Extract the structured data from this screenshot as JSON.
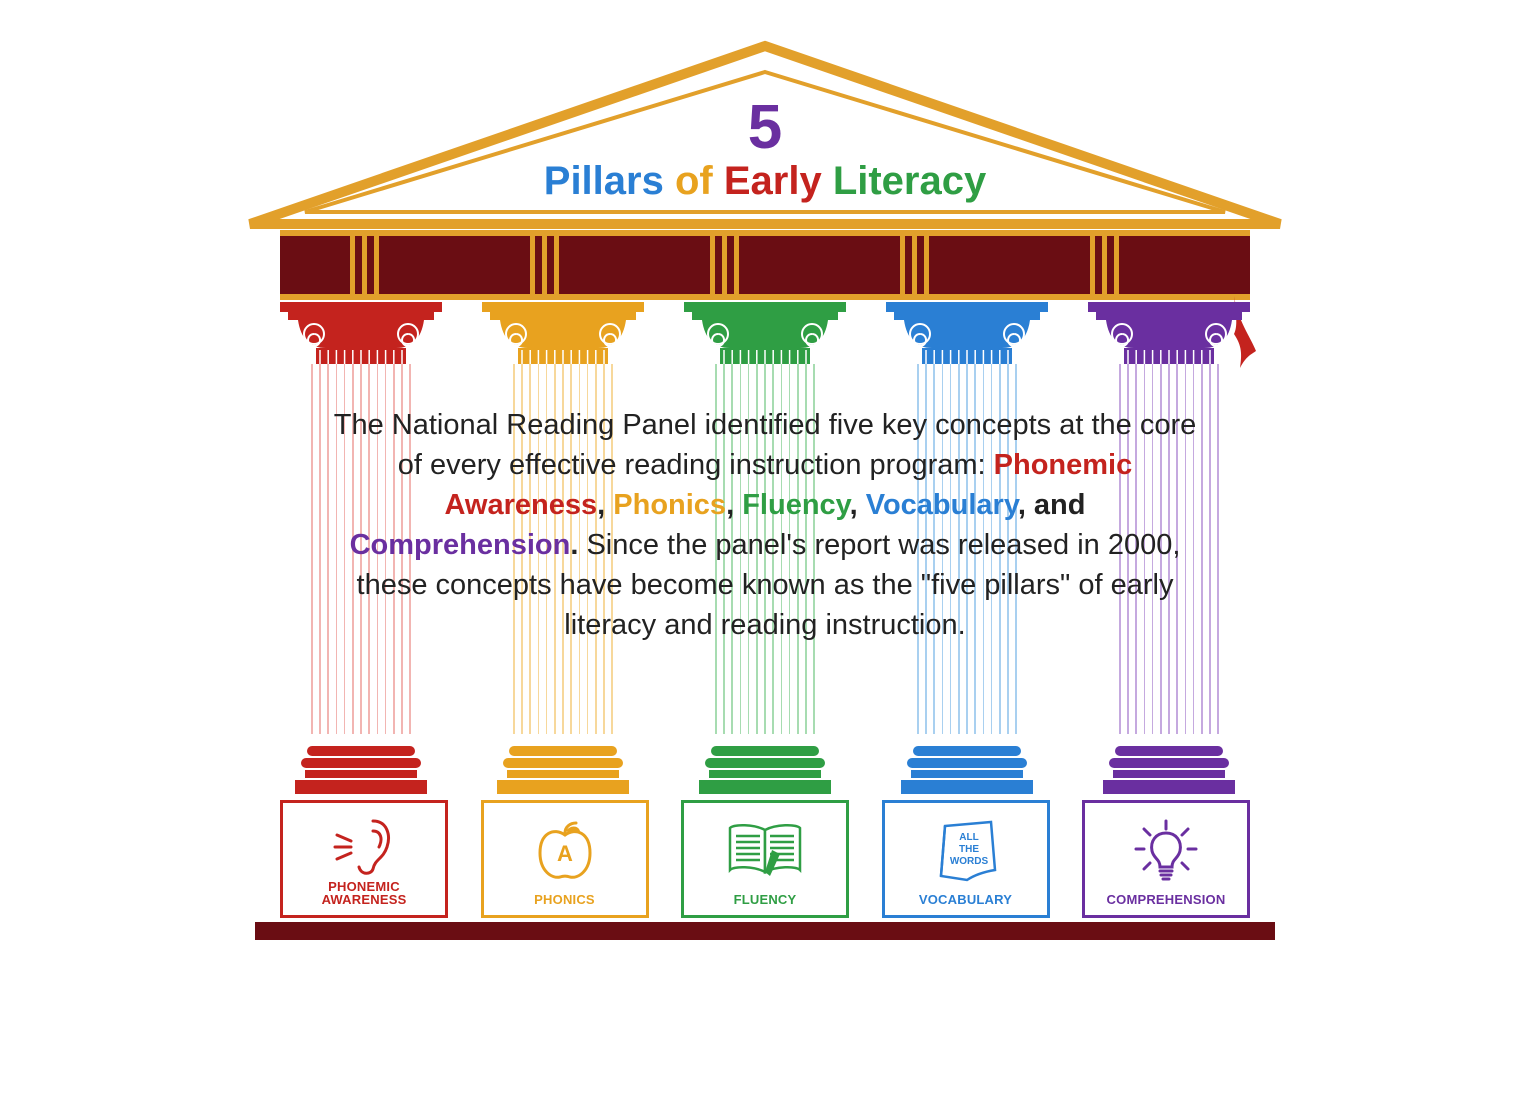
{
  "colors": {
    "roof": "#e2a02b",
    "book": "#6a0d13",
    "red": "#c4231e",
    "orange": "#e8a21f",
    "green": "#2f9e44",
    "blue": "#2a7fd4",
    "purple": "#6a2fa0",
    "text": "#222222"
  },
  "title": {
    "number": "5",
    "number_color": "#6a2fa0",
    "words": [
      {
        "text": "Pillars ",
        "color": "#2a7fd4"
      },
      {
        "text": "of ",
        "color": "#e8a21f"
      },
      {
        "text": "Early ",
        "color": "#c4231e"
      },
      {
        "text": "Literacy",
        "color": "#2f9e44"
      }
    ]
  },
  "paragraph": {
    "pre": "The National Reading Panel identified five key concepts at the core of every effective reading instruction program: ",
    "keywords": [
      {
        "text": "Phonemic Awareness",
        "color": "#c4231e"
      },
      {
        "text": "Phonics",
        "color": "#e8a21f"
      },
      {
        "text": "Fluency",
        "color": "#2f9e44"
      },
      {
        "text": "Vocabulary",
        "color": "#2a7fd4"
      },
      {
        "text": "Comprehension",
        "color": "#6a2fa0"
      }
    ],
    "sep1": ", ",
    "sep_and": ", and ",
    "period": ".",
    "post": " Since the panel's report was released in 2000, these concepts have become known as the \"five pillars\" of early literacy and reading instruction."
  },
  "pillars": [
    {
      "id": "phonemic",
      "color": "#c4231e",
      "light": "#f2b5b2",
      "label": "PHONEMIC\nAWARENESS",
      "icon": "ear"
    },
    {
      "id": "phonics",
      "color": "#e8a21f",
      "light": "#f7d89b",
      "label": "PHONICS",
      "icon": "apple"
    },
    {
      "id": "fluency",
      "color": "#2f9e44",
      "light": "#a7dcb1",
      "label": "FLUENCY",
      "icon": "book"
    },
    {
      "id": "vocabulary",
      "color": "#2a7fd4",
      "light": "#a9d0f0",
      "label": "VOCABULARY",
      "icon": "words"
    },
    {
      "id": "comprehension",
      "color": "#6a2fa0",
      "light": "#c5a9df",
      "label": "COMPREHENSION",
      "icon": "bulb"
    }
  ],
  "words_text": "ALL\nTHE\nWORDS",
  "apple_letter": "A",
  "spine_positions": [
    70,
    250,
    430,
    620,
    810
  ],
  "spine_count_per_group": 3
}
